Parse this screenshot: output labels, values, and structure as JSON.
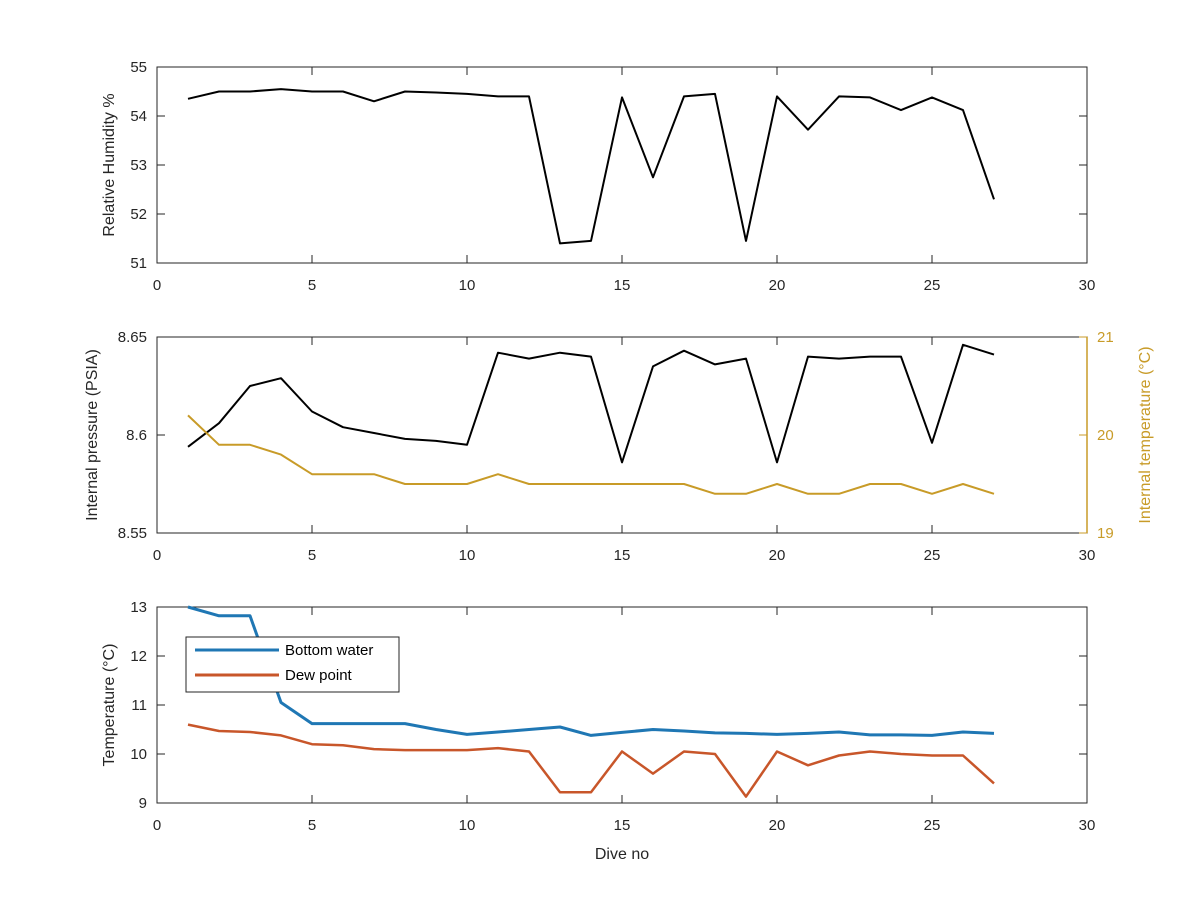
{
  "colors": {
    "axes": "#262626",
    "black_series": "#000000",
    "internal_temperature": "#C89B28",
    "bottom_water": "#1F77B4",
    "dew_point": "#C8562A"
  },
  "chart_data": [
    {
      "type": "line",
      "xlabel": "",
      "ylabel": "Relative Humidity %",
      "xlim": [
        0,
        30
      ],
      "ylim": [
        51,
        55
      ],
      "xticks": [
        "0",
        "5",
        "10",
        "15",
        "20",
        "25",
        "30"
      ],
      "yticks": [
        "51",
        "52",
        "53",
        "54",
        "55"
      ],
      "grid": false,
      "series": [
        {
          "x": [
            1,
            2,
            3,
            4,
            5,
            6,
            7,
            8,
            9,
            10,
            11,
            12,
            13,
            14,
            15,
            16,
            17,
            18,
            19,
            20,
            21,
            22,
            23,
            24,
            25,
            26,
            27
          ],
          "values": [
            54.35,
            54.5,
            54.5,
            54.55,
            54.5,
            54.5,
            54.3,
            54.5,
            54.48,
            54.45,
            54.4,
            54.4,
            51.4,
            51.45,
            54.38,
            52.75,
            54.4,
            54.45,
            51.45,
            54.4,
            53.72,
            54.4,
            54.38,
            54.12,
            54.38,
            54.12,
            52.3
          ]
        }
      ]
    },
    {
      "type": "line",
      "xlabel": "",
      "ylabel": "Internal pressure (PSIA)",
      "ylabel_right": "Internal temperature (°C)",
      "xlim": [
        0,
        30
      ],
      "ylim": [
        8.55,
        8.65
      ],
      "ylim_right": [
        19,
        21
      ],
      "xticks": [
        "0",
        "5",
        "10",
        "15",
        "20",
        "25",
        "30"
      ],
      "yticks": [
        "8.55",
        "8.6",
        "8.65"
      ],
      "yticks_right": [
        "19",
        "20",
        "21"
      ],
      "grid": false,
      "series": [
        {
          "axis": "left",
          "x": [
            1,
            2,
            3,
            4,
            5,
            6,
            7,
            8,
            9,
            10,
            11,
            12,
            13,
            14,
            15,
            16,
            17,
            18,
            19,
            20,
            21,
            22,
            23,
            24,
            25,
            26,
            27
          ],
          "values": [
            8.594,
            8.606,
            8.625,
            8.629,
            8.612,
            8.604,
            8.601,
            8.598,
            8.597,
            8.595,
            8.642,
            8.639,
            8.642,
            8.64,
            8.586,
            8.635,
            8.643,
            8.636,
            8.639,
            8.586,
            8.64,
            8.639,
            8.64,
            8.64,
            8.596,
            8.646,
            8.641
          ]
        },
        {
          "axis": "right",
          "x": [
            1,
            2,
            3,
            4,
            5,
            6,
            7,
            8,
            9,
            10,
            11,
            12,
            13,
            14,
            15,
            16,
            17,
            18,
            19,
            20,
            21,
            22,
            23,
            24,
            25,
            26,
            27
          ],
          "values": [
            20.2,
            19.9,
            19.9,
            19.8,
            19.6,
            19.6,
            19.6,
            19.5,
            19.5,
            19.5,
            19.6,
            19.5,
            19.5,
            19.5,
            19.5,
            19.5,
            19.5,
            19.4,
            19.4,
            19.5,
            19.4,
            19.4,
            19.5,
            19.5,
            19.4,
            19.5,
            19.4
          ]
        }
      ]
    },
    {
      "type": "line",
      "xlabel": "Dive no",
      "ylabel": "Temperature (°C)",
      "xlim": [
        0,
        30
      ],
      "ylim": [
        9,
        13
      ],
      "xticks": [
        "0",
        "5",
        "10",
        "15",
        "20",
        "25",
        "30"
      ],
      "yticks": [
        "9",
        "10",
        "11",
        "12",
        "13"
      ],
      "grid": false,
      "legend_position": "top-left",
      "series": [
        {
          "name": "Bottom water",
          "x": [
            1,
            2,
            3,
            4,
            5,
            6,
            7,
            8,
            9,
            10,
            11,
            12,
            13,
            14,
            15,
            16,
            17,
            18,
            19,
            20,
            21,
            22,
            23,
            24,
            25,
            26,
            27
          ],
          "values": [
            13.0,
            12.82,
            12.82,
            11.05,
            10.62,
            10.62,
            10.62,
            10.62,
            10.5,
            10.4,
            10.45,
            10.5,
            10.55,
            10.38,
            10.44,
            10.5,
            10.47,
            10.43,
            10.42,
            10.4,
            10.42,
            10.45,
            10.39,
            10.39,
            10.38,
            10.45,
            10.42
          ]
        },
        {
          "name": "Dew point",
          "x": [
            1,
            2,
            3,
            4,
            5,
            6,
            7,
            8,
            9,
            10,
            11,
            12,
            13,
            14,
            15,
            16,
            17,
            18,
            19,
            20,
            21,
            22,
            23,
            24,
            25,
            26,
            27
          ],
          "values": [
            10.6,
            10.47,
            10.45,
            10.38,
            10.2,
            10.18,
            10.1,
            10.08,
            10.08,
            10.08,
            10.12,
            10.05,
            9.22,
            9.22,
            10.05,
            9.6,
            10.05,
            10.0,
            9.13,
            10.05,
            9.77,
            9.97,
            10.05,
            10.0,
            9.97,
            9.97,
            9.4
          ]
        }
      ]
    }
  ]
}
